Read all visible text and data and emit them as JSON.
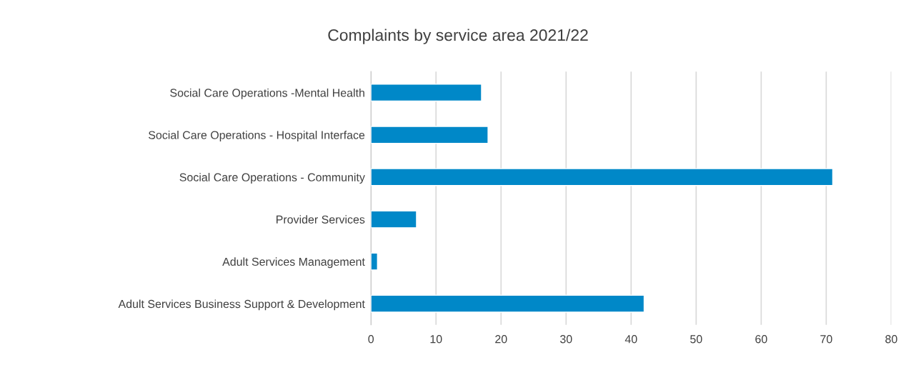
{
  "chart_data": {
    "type": "bar",
    "orientation": "horizontal",
    "title": "Complaints by service area 2021/22",
    "categories": [
      "Social Care Operations -Mental Health",
      "Social Care Operations - Hospital Interface",
      "Social Care Operations - Community",
      "Provider Services",
      "Adult Services Management",
      "Adult Services Business Support & Development"
    ],
    "values": [
      17,
      18,
      71,
      7,
      1,
      42
    ],
    "color": "#0088c8",
    "xlim": [
      0,
      80
    ],
    "xticks": [
      0,
      10,
      20,
      30,
      40,
      50,
      60,
      70,
      80
    ],
    "grid": "x"
  }
}
